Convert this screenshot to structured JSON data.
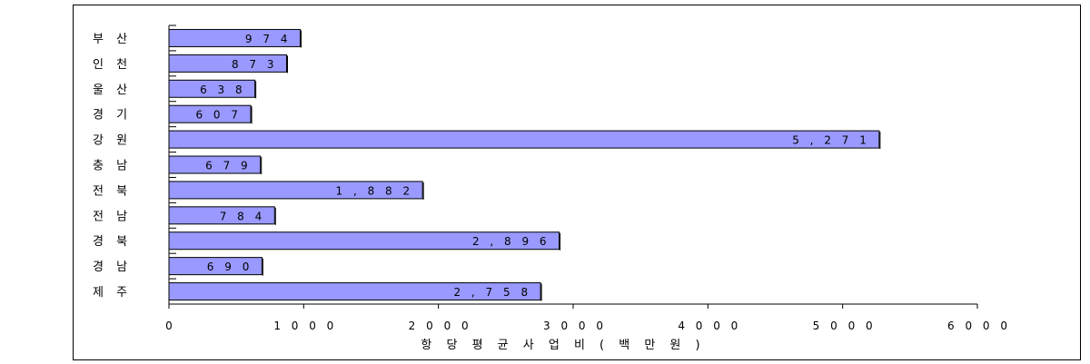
{
  "chart_data": {
    "type": "bar",
    "orientation": "horizontal",
    "categories": [
      "부 산",
      "인 천",
      "울 산",
      "경 기",
      "강 원",
      "충 남",
      "전 북",
      "전 남",
      "경 북",
      "경 남",
      "제 주"
    ],
    "values": [
      974,
      873,
      638,
      607,
      5271,
      679,
      1882,
      784,
      2896,
      690,
      2758
    ],
    "value_labels": [
      "9 7 4",
      "8 7 3",
      "6 3 8",
      "6 0 7",
      "5 , 2 7 1",
      "6 7 9",
      "1 , 8 8 2",
      "7 8 4",
      "2 , 8 9 6",
      "6 9 0",
      "2 , 7 5 8"
    ],
    "xlabel": "항 당 평 균  사 업 비  ( 백 만 원 )",
    "xlim": [
      0,
      6000
    ],
    "xticks": [
      0,
      1000,
      2000,
      3000,
      4000,
      5000,
      6000
    ],
    "xtick_labels": [
      "0",
      "1 0 0 0",
      "2 0 0 0",
      "3 0 0 0",
      "4 0 0 0",
      "5 0 0 0",
      "6 0 0 0"
    ],
    "bar_color": "#9999ff",
    "grid": false
  }
}
